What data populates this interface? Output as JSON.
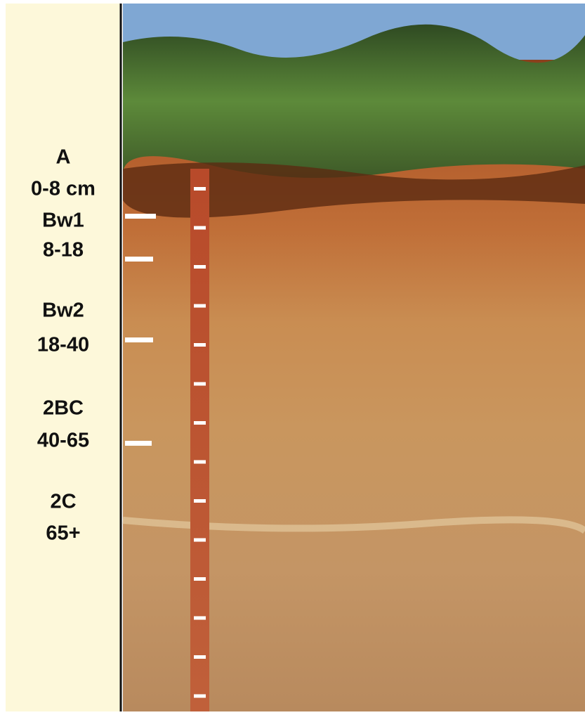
{
  "horizons": [
    {
      "name": "A",
      "depth": "0-8 cm"
    },
    {
      "name": "Bw1",
      "depth": "8-18"
    },
    {
      "name": "Bw2",
      "depth": "18-40"
    },
    {
      "name": "2BC",
      "depth": "40-65"
    },
    {
      "name": "2C",
      "depth": "65+"
    }
  ]
}
